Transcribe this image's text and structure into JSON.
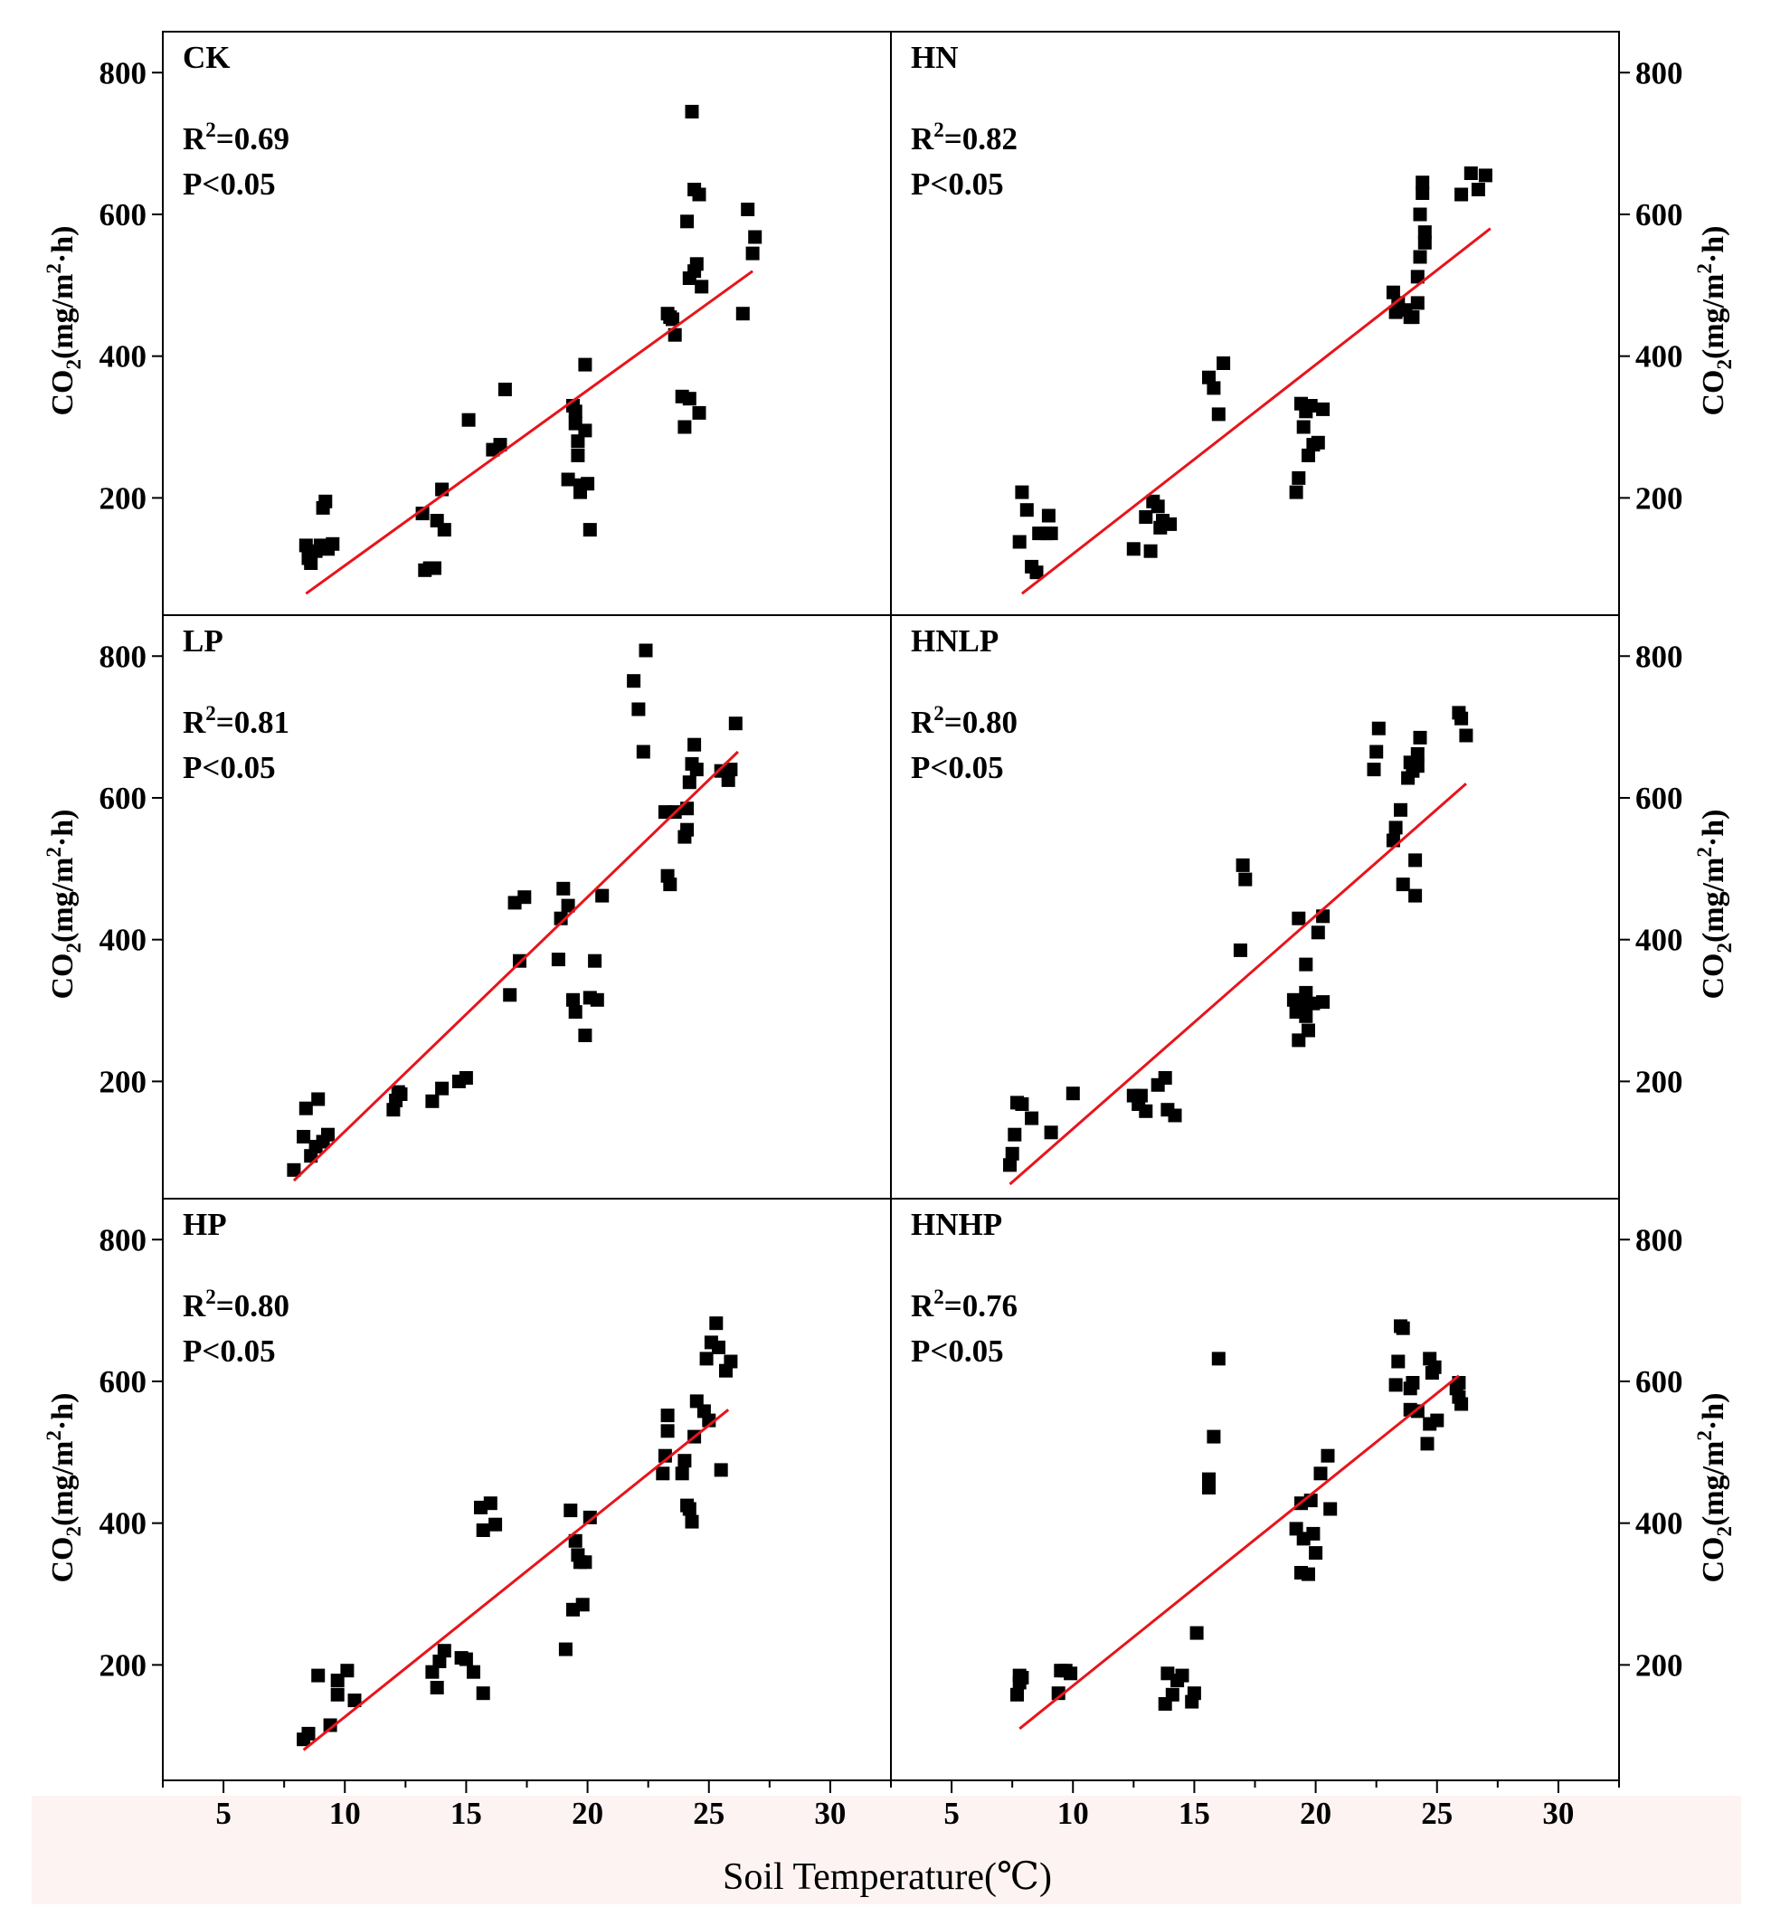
{
  "figure": {
    "xlabel": "Soil Temperature(℃)",
    "ylabel_parts": {
      "prefix": "CO",
      "sub": "2",
      "mid": "(mg/m",
      "sup": "2",
      "suffix": "·h)"
    },
    "stat_prefix": "R",
    "stat_sup": "2",
    "colors": {
      "points": "#000000",
      "fit_line": "#e8141b",
      "frame": "#000000",
      "bottom_band": "#fdf3f3"
    }
  },
  "chart_data": [
    {
      "type": "scatter",
      "panel": "CK",
      "r2": "=0.69",
      "p": "P<0.05",
      "xlim": [
        2.5,
        32.5
      ],
      "ylim": [
        55,
        845
      ],
      "xticks": [
        5,
        10,
        15,
        20,
        25,
        30
      ],
      "yticks": [
        200,
        400,
        600,
        800
      ],
      "fit": {
        "x": [
          8.4,
          26.8
        ],
        "y": [
          65,
          520
        ]
      },
      "points": [
        [
          8.4,
          133
        ],
        [
          8.5,
          115
        ],
        [
          8.6,
          108
        ],
        [
          8.8,
          125
        ],
        [
          9.0,
          133
        ],
        [
          9.1,
          186
        ],
        [
          9.2,
          195
        ],
        [
          9.3,
          128
        ],
        [
          9.5,
          135
        ],
        [
          13.2,
          178
        ],
        [
          13.3,
          98
        ],
        [
          13.5,
          101
        ],
        [
          13.7,
          101
        ],
        [
          13.8,
          168
        ],
        [
          14.0,
          212
        ],
        [
          14.1,
          155
        ],
        [
          15.1,
          310
        ],
        [
          16.1,
          268
        ],
        [
          16.4,
          275
        ],
        [
          16.6,
          353
        ],
        [
          19.2,
          226
        ],
        [
          19.4,
          330
        ],
        [
          19.5,
          322
        ],
        [
          19.5,
          305
        ],
        [
          19.6,
          260
        ],
        [
          19.6,
          280
        ],
        [
          19.7,
          218
        ],
        [
          19.7,
          208
        ],
        [
          19.9,
          295
        ],
        [
          19.9,
          388
        ],
        [
          20.0,
          220
        ],
        [
          20.1,
          155
        ],
        [
          23.3,
          460
        ],
        [
          23.4,
          455
        ],
        [
          23.5,
          452
        ],
        [
          23.6,
          430
        ],
        [
          23.9,
          343
        ],
        [
          24.0,
          300
        ],
        [
          24.1,
          590
        ],
        [
          24.2,
          340
        ],
        [
          24.2,
          510
        ],
        [
          24.3,
          745
        ],
        [
          24.4,
          635
        ],
        [
          24.4,
          520
        ],
        [
          24.5,
          530
        ],
        [
          24.6,
          628
        ],
        [
          24.6,
          320
        ],
        [
          24.7,
          498
        ],
        [
          26.4,
          460
        ],
        [
          26.6,
          607
        ],
        [
          26.8,
          545
        ],
        [
          26.9,
          568
        ]
      ]
    },
    {
      "type": "scatter",
      "panel": "HN",
      "r2": "=0.82",
      "p": "P<0.05",
      "xlim": [
        2.5,
        32.5
      ],
      "ylim": [
        55,
        845
      ],
      "xticks": [
        5,
        10,
        15,
        20,
        25,
        30
      ],
      "yticks": [
        200,
        400,
        600,
        800
      ],
      "fit": {
        "x": [
          7.9,
          27.2
        ],
        "y": [
          65,
          580
        ]
      },
      "points": [
        [
          7.8,
          138
        ],
        [
          7.9,
          208
        ],
        [
          8.1,
          183
        ],
        [
          8.3,
          103
        ],
        [
          8.5,
          95
        ],
        [
          8.6,
          150
        ],
        [
          8.9,
          150
        ],
        [
          9.0,
          175
        ],
        [
          9.1,
          150
        ],
        [
          12.5,
          128
        ],
        [
          13.0,
          173
        ],
        [
          13.2,
          125
        ],
        [
          13.3,
          195
        ],
        [
          13.5,
          188
        ],
        [
          13.6,
          158
        ],
        [
          13.7,
          168
        ],
        [
          14.0,
          163
        ],
        [
          15.6,
          370
        ],
        [
          15.8,
          355
        ],
        [
          16.0,
          318
        ],
        [
          16.2,
          390
        ],
        [
          19.2,
          208
        ],
        [
          19.3,
          228
        ],
        [
          19.4,
          333
        ],
        [
          19.5,
          300
        ],
        [
          19.6,
          322
        ],
        [
          19.7,
          260
        ],
        [
          19.8,
          330
        ],
        [
          19.9,
          275
        ],
        [
          20.1,
          278
        ],
        [
          20.3,
          325
        ],
        [
          23.2,
          490
        ],
        [
          23.3,
          462
        ],
        [
          23.4,
          475
        ],
        [
          23.7,
          465
        ],
        [
          23.9,
          455
        ],
        [
          24.0,
          455
        ],
        [
          24.2,
          475
        ],
        [
          24.2,
          512
        ],
        [
          24.3,
          540
        ],
        [
          24.3,
          600
        ],
        [
          24.4,
          630
        ],
        [
          24.4,
          645
        ],
        [
          24.5,
          560
        ],
        [
          24.5,
          575
        ],
        [
          26.0,
          628
        ],
        [
          26.4,
          658
        ],
        [
          26.7,
          635
        ],
        [
          27.0,
          655
        ]
      ]
    },
    {
      "type": "scatter",
      "panel": "LP",
      "r2": "=0.81",
      "p": "P<0.05",
      "xlim": [
        2.5,
        32.5
      ],
      "ylim": [
        55,
        845
      ],
      "xticks": [
        5,
        10,
        15,
        20,
        25,
        30
      ],
      "yticks": [
        200,
        400,
        600,
        800
      ],
      "fit": {
        "x": [
          7.9,
          26.2
        ],
        "y": [
          60,
          665
        ]
      },
      "points": [
        [
          7.9,
          75
        ],
        [
          8.3,
          122
        ],
        [
          8.4,
          162
        ],
        [
          8.6,
          95
        ],
        [
          8.8,
          108
        ],
        [
          8.9,
          175
        ],
        [
          9.1,
          115
        ],
        [
          9.3,
          125
        ],
        [
          12.0,
          160
        ],
        [
          12.1,
          173
        ],
        [
          12.2,
          185
        ],
        [
          12.3,
          182
        ],
        [
          13.6,
          172
        ],
        [
          14.0,
          190
        ],
        [
          14.7,
          200
        ],
        [
          15.0,
          205
        ],
        [
          16.8,
          322
        ],
        [
          17.0,
          452
        ],
        [
          17.2,
          370
        ],
        [
          17.4,
          460
        ],
        [
          18.8,
          372
        ],
        [
          18.9,
          430
        ],
        [
          19.0,
          472
        ],
        [
          19.2,
          448
        ],
        [
          19.4,
          315
        ],
        [
          19.5,
          298
        ],
        [
          19.9,
          265
        ],
        [
          20.1,
          318
        ],
        [
          20.3,
          370
        ],
        [
          20.4,
          315
        ],
        [
          20.6,
          462
        ],
        [
          21.9,
          765
        ],
        [
          22.1,
          725
        ],
        [
          22.3,
          665
        ],
        [
          22.4,
          808
        ],
        [
          23.2,
          580
        ],
        [
          23.3,
          490
        ],
        [
          23.4,
          478
        ],
        [
          23.6,
          580
        ],
        [
          24.0,
          545
        ],
        [
          24.1,
          555
        ],
        [
          24.1,
          585
        ],
        [
          24.2,
          622
        ],
        [
          24.3,
          648
        ],
        [
          24.4,
          675
        ],
        [
          24.5,
          640
        ],
        [
          25.5,
          638
        ],
        [
          25.8,
          625
        ],
        [
          25.9,
          640
        ],
        [
          26.1,
          705
        ]
      ]
    },
    {
      "type": "scatter",
      "panel": "HNLP",
      "r2": "=0.80",
      "p": "P<0.05",
      "xlim": [
        2.5,
        32.5
      ],
      "ylim": [
        55,
        845
      ],
      "xticks": [
        5,
        10,
        15,
        20,
        25,
        30
      ],
      "yticks": [
        200,
        400,
        600,
        800
      ],
      "fit": {
        "x": [
          7.4,
          26.2
        ],
        "y": [
          55,
          620
        ]
      },
      "points": [
        [
          7.4,
          82
        ],
        [
          7.5,
          98
        ],
        [
          7.6,
          125
        ],
        [
          7.7,
          170
        ],
        [
          7.9,
          168
        ],
        [
          8.3,
          148
        ],
        [
          9.1,
          128
        ],
        [
          10.0,
          183
        ],
        [
          12.5,
          180
        ],
        [
          12.7,
          168
        ],
        [
          12.8,
          180
        ],
        [
          13.0,
          158
        ],
        [
          13.5,
          195
        ],
        [
          13.8,
          205
        ],
        [
          13.9,
          160
        ],
        [
          14.2,
          152
        ],
        [
          16.9,
          385
        ],
        [
          17.0,
          505
        ],
        [
          17.1,
          485
        ],
        [
          19.1,
          315
        ],
        [
          19.2,
          298
        ],
        [
          19.3,
          430
        ],
        [
          19.3,
          258
        ],
        [
          19.5,
          308
        ],
        [
          19.6,
          325
        ],
        [
          19.6,
          365
        ],
        [
          19.6,
          292
        ],
        [
          19.7,
          272
        ],
        [
          19.9,
          310
        ],
        [
          20.1,
          410
        ],
        [
          20.3,
          433
        ],
        [
          20.3,
          312
        ],
        [
          22.4,
          640
        ],
        [
          22.5,
          665
        ],
        [
          22.6,
          698
        ],
        [
          23.2,
          540
        ],
        [
          23.3,
          558
        ],
        [
          23.5,
          583
        ],
        [
          23.6,
          478
        ],
        [
          23.8,
          628
        ],
        [
          23.9,
          650
        ],
        [
          24.0,
          638
        ],
        [
          24.1,
          462
        ],
        [
          24.1,
          512
        ],
        [
          24.2,
          645
        ],
        [
          24.2,
          662
        ],
        [
          24.3,
          685
        ],
        [
          25.9,
          720
        ],
        [
          26.0,
          712
        ],
        [
          26.2,
          688
        ]
      ]
    },
    {
      "type": "scatter",
      "panel": "HP",
      "r2": "=0.80",
      "p": "P<0.05",
      "xlim": [
        2.5,
        32.5
      ],
      "ylim": [
        55,
        845
      ],
      "xticks": [
        5,
        10,
        15,
        20,
        25,
        30
      ],
      "yticks": [
        200,
        400,
        600,
        800
      ],
      "fit": {
        "x": [
          8.3,
          25.8
        ],
        "y": [
          80,
          560
        ]
      },
      "points": [
        [
          8.3,
          95
        ],
        [
          8.5,
          103
        ],
        [
          8.9,
          185
        ],
        [
          9.4,
          115
        ],
        [
          9.7,
          158
        ],
        [
          9.7,
          178
        ],
        [
          10.1,
          192
        ],
        [
          10.4,
          150
        ],
        [
          13.6,
          190
        ],
        [
          13.8,
          168
        ],
        [
          13.9,
          205
        ],
        [
          14.1,
          220
        ],
        [
          14.8,
          210
        ],
        [
          15.0,
          208
        ],
        [
          15.3,
          190
        ],
        [
          15.6,
          422
        ],
        [
          15.7,
          390
        ],
        [
          15.7,
          160
        ],
        [
          16.0,
          428
        ],
        [
          16.2,
          398
        ],
        [
          19.1,
          222
        ],
        [
          19.3,
          418
        ],
        [
          19.4,
          278
        ],
        [
          19.5,
          375
        ],
        [
          19.6,
          355
        ],
        [
          19.7,
          345
        ],
        [
          19.8,
          285
        ],
        [
          19.9,
          345
        ],
        [
          20.1,
          408
        ],
        [
          23.1,
          470
        ],
        [
          23.2,
          495
        ],
        [
          23.3,
          552
        ],
        [
          23.3,
          530
        ],
        [
          23.9,
          470
        ],
        [
          24.0,
          488
        ],
        [
          24.1,
          425
        ],
        [
          24.2,
          420
        ],
        [
          24.3,
          402
        ],
        [
          24.4,
          522
        ],
        [
          24.5,
          572
        ],
        [
          24.8,
          558
        ],
        [
          24.9,
          632
        ],
        [
          25.0,
          545
        ],
        [
          25.1,
          655
        ],
        [
          25.3,
          682
        ],
        [
          25.4,
          648
        ],
        [
          25.5,
          475
        ],
        [
          25.7,
          615
        ],
        [
          25.9,
          628
        ]
      ]
    },
    {
      "type": "scatter",
      "panel": "HNHP",
      "r2": "=0.76",
      "p": "P<0.05",
      "xlim": [
        2.5,
        32.5
      ],
      "ylim": [
        55,
        845
      ],
      "xticks": [
        5,
        10,
        15,
        20,
        25,
        30
      ],
      "yticks": [
        200,
        400,
        600,
        800
      ],
      "fit": {
        "x": [
          7.8,
          25.9
        ],
        "y": [
          110,
          608
        ]
      },
      "points": [
        [
          7.7,
          158
        ],
        [
          7.8,
          175
        ],
        [
          7.8,
          185
        ],
        [
          7.9,
          182
        ],
        [
          9.4,
          160
        ],
        [
          9.5,
          192
        ],
        [
          9.7,
          192
        ],
        [
          9.9,
          188
        ],
        [
          13.8,
          145
        ],
        [
          13.9,
          188
        ],
        [
          14.1,
          158
        ],
        [
          14.3,
          178
        ],
        [
          14.5,
          185
        ],
        [
          14.9,
          148
        ],
        [
          15.0,
          160
        ],
        [
          15.1,
          245
        ],
        [
          15.6,
          450
        ],
        [
          15.6,
          462
        ],
        [
          15.8,
          522
        ],
        [
          16.0,
          632
        ],
        [
          19.2,
          392
        ],
        [
          19.4,
          330
        ],
        [
          19.4,
          428
        ],
        [
          19.5,
          378
        ],
        [
          19.7,
          328
        ],
        [
          19.8,
          432
        ],
        [
          19.9,
          385
        ],
        [
          20.0,
          358
        ],
        [
          20.2,
          470
        ],
        [
          20.5,
          495
        ],
        [
          20.6,
          420
        ],
        [
          23.3,
          595
        ],
        [
          23.4,
          628
        ],
        [
          23.5,
          678
        ],
        [
          23.6,
          675
        ],
        [
          23.9,
          560
        ],
        [
          23.9,
          590
        ],
        [
          24.0,
          598
        ],
        [
          24.2,
          558
        ],
        [
          24.6,
          512
        ],
        [
          24.7,
          540
        ],
        [
          24.7,
          632
        ],
        [
          24.8,
          612
        ],
        [
          24.9,
          620
        ],
        [
          25.0,
          545
        ],
        [
          25.8,
          590
        ],
        [
          25.9,
          578
        ],
        [
          25.9,
          598
        ],
        [
          26.0,
          568
        ]
      ]
    }
  ]
}
